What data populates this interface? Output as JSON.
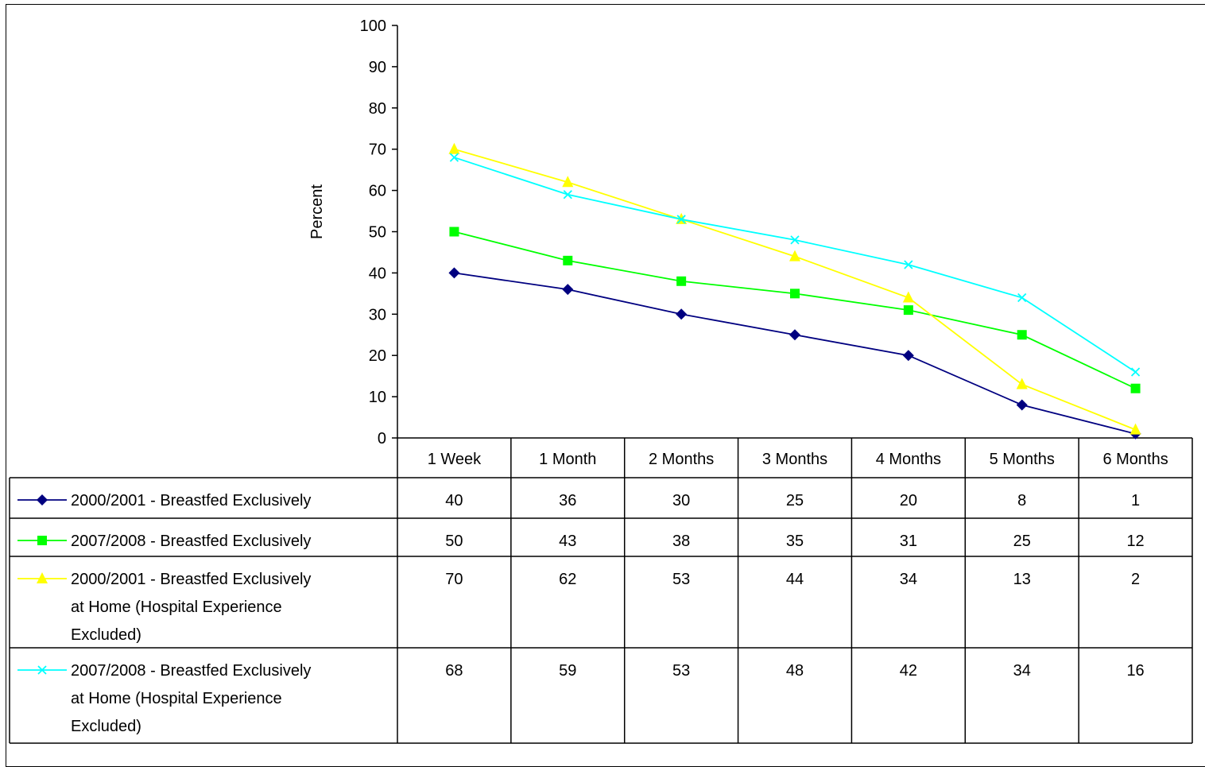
{
  "chart_data": {
    "type": "line",
    "ylabel": "Percent",
    "ylim": [
      0,
      100
    ],
    "yticks": [
      0,
      10,
      20,
      30,
      40,
      50,
      60,
      70,
      80,
      90,
      100
    ],
    "categories": [
      "1 Week",
      "1 Month",
      "2 Months",
      "3 Months",
      "4 Months",
      "5 Months",
      "6 Months"
    ],
    "legend_placement": "data-table-below",
    "series": [
      {
        "name": "2000/2001 - Breastfed Exclusively",
        "label_lines": [
          "2000/2001 - Breastfed Exclusively"
        ],
        "values": [
          40,
          36,
          30,
          25,
          20,
          8,
          1
        ],
        "color": "#000080",
        "marker": "diamond"
      },
      {
        "name": "2007/2008 - Breastfed Exclusively",
        "label_lines": [
          "2007/2008 - Breastfed Exclusively"
        ],
        "values": [
          50,
          43,
          38,
          35,
          31,
          25,
          12
        ],
        "color": "#00ff00",
        "marker": "square"
      },
      {
        "name": "2000/2001 - Breastfed Exclusively at Home (Hospital Experience Excluded)",
        "label_lines": [
          "2000/2001 - Breastfed Exclusively",
          "at Home (Hospital Experience",
          "Excluded)"
        ],
        "values": [
          70,
          62,
          53,
          44,
          34,
          13,
          2
        ],
        "color": "#ffff00",
        "marker": "triangle"
      },
      {
        "name": "2007/2008 - Breastfed Exclusively at Home (Hospital Experience Excluded)",
        "label_lines": [
          "2007/2008 - Breastfed Exclusively",
          "at Home (Hospital Experience",
          "Excluded)"
        ],
        "values": [
          68,
          59,
          53,
          48,
          42,
          34,
          16
        ],
        "color": "#00ffff",
        "marker": "x"
      }
    ]
  }
}
